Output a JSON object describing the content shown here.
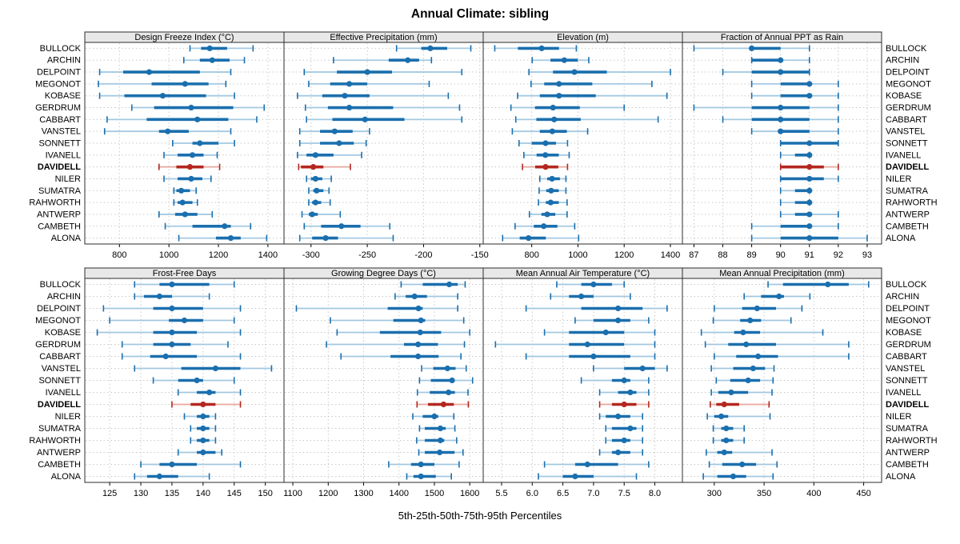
{
  "title": "Annual Climate: sibling",
  "caption": "5th-25th-50th-75th-95th Percentiles",
  "highlight_site": "DAVIDELL",
  "colors": {
    "blue": "#1a6fae",
    "blue_light": "#a3c9e2",
    "red": "#b4271f",
    "red_light": "#e7a69d",
    "strip_bg": "#e8e8e8",
    "panel_border": "#2b2b2b",
    "grid": "#c9c9c9",
    "text": "#000000"
  },
  "chart_data": {
    "type": "dotplot-intervals",
    "percentiles": [
      5,
      25,
      50,
      75,
      95
    ],
    "sites": [
      "BULLOCK",
      "ARCHIN",
      "DELPOINT",
      "MEGONOT",
      "KOBASE",
      "GERDRUM",
      "CABBART",
      "VANSTEL",
      "SONNETT",
      "IVANELL",
      "DAVIDELL",
      "NILER",
      "SUMATRA",
      "RAHWORTH",
      "ANTWERP",
      "CAMBETH",
      "ALONA"
    ],
    "legend": "none",
    "grid": "dotted",
    "panels": [
      {
        "title": "Design Freeze Index (°C)",
        "xlim": [
          660,
          1465
        ],
        "ticks": [
          800,
          1000,
          1200,
          1400
        ],
        "tick_labels": [
          "800",
          "1000",
          "1200",
          "1400"
        ],
        "values": [
          [
            1085,
            1130,
            1165,
            1235,
            1340
          ],
          [
            1060,
            1125,
            1175,
            1245,
            1305
          ],
          [
            720,
            815,
            920,
            1125,
            1250
          ],
          [
            715,
            930,
            1065,
            1160,
            1230
          ],
          [
            720,
            820,
            975,
            1150,
            1265
          ],
          [
            850,
            940,
            1090,
            1260,
            1385
          ],
          [
            750,
            910,
            1115,
            1240,
            1355
          ],
          [
            740,
            960,
            995,
            1080,
            1250
          ],
          [
            1015,
            1095,
            1125,
            1200,
            1265
          ],
          [
            980,
            1035,
            1095,
            1140,
            1195
          ],
          [
            960,
            1030,
            1085,
            1140,
            1205
          ],
          [
            980,
            1035,
            1090,
            1135,
            1170
          ],
          [
            1020,
            1030,
            1050,
            1085,
            1110
          ],
          [
            1020,
            1035,
            1055,
            1095,
            1115
          ],
          [
            960,
            1025,
            1065,
            1115,
            1175
          ],
          [
            985,
            1095,
            1225,
            1250,
            1330
          ],
          [
            1040,
            1190,
            1250,
            1290,
            1395
          ]
        ]
      },
      {
        "title": "Effective Precipitation (mm)",
        "xlim": [
          -324,
          -147
        ],
        "ticks": [
          -300,
          -250,
          -200,
          -150
        ],
        "tick_labels": [
          "-300",
          "-250",
          "-200",
          "-150"
        ],
        "values": [
          [
            -224,
            -202,
            -194,
            -179,
            -158
          ],
          [
            -280,
            -231,
            -214,
            -204,
            -193
          ],
          [
            -306,
            -277,
            -250,
            -228,
            -166
          ],
          [
            -302,
            -283,
            -266,
            -250,
            -195
          ],
          [
            -312,
            -290,
            -270,
            -248,
            -178
          ],
          [
            -305,
            -285,
            -266,
            -227,
            -168
          ],
          [
            -304,
            -281,
            -252,
            -217,
            -166
          ],
          [
            -310,
            -292,
            -279,
            -263,
            -248
          ],
          [
            -310,
            -292,
            -275,
            -262,
            -251
          ],
          [
            -312,
            -304,
            -296,
            -280,
            -255
          ],
          [
            -311,
            -309,
            -298,
            -289,
            -265
          ],
          [
            -304,
            -300,
            -296,
            -290,
            -282
          ],
          [
            -302,
            -298,
            -295,
            -289,
            -284
          ],
          [
            -302,
            -299,
            -296,
            -291,
            -283
          ],
          [
            -308,
            -302,
            -299,
            -294,
            -274
          ],
          [
            -306,
            -291,
            -273,
            -256,
            -230
          ],
          [
            -310,
            -299,
            -287,
            -276,
            -227
          ]
        ]
      },
      {
        "title": "Elevation (m)",
        "xlim": [
          590,
          1452
        ],
        "ticks": [
          800,
          1000,
          1200,
          1400
        ],
        "tick_labels": [
          "800",
          "1000",
          "1200",
          "1400"
        ],
        "values": [
          [
            640,
            740,
            843,
            918,
            993
          ],
          [
            802,
            881,
            941,
            999,
            1047
          ],
          [
            788,
            892,
            985,
            1125,
            1400
          ],
          [
            797,
            854,
            918,
            1062,
            1320
          ],
          [
            739,
            835,
            918,
            1077,
            1385
          ],
          [
            710,
            814,
            892,
            1008,
            1200
          ],
          [
            731,
            820,
            897,
            1012,
            1347
          ],
          [
            716,
            835,
            889,
            952,
            1042
          ],
          [
            745,
            800,
            860,
            905,
            955
          ],
          [
            766,
            821,
            859,
            917,
            962
          ],
          [
            760,
            815,
            860,
            915,
            955
          ],
          [
            835,
            867,
            888,
            922,
            948
          ],
          [
            832,
            863,
            884,
            917,
            948
          ],
          [
            829,
            861,
            882,
            917,
            953
          ],
          [
            790,
            842,
            867,
            902,
            953
          ],
          [
            728,
            809,
            852,
            911,
            986
          ],
          [
            674,
            748,
            786,
            861,
            1003
          ]
        ]
      },
      {
        "title": "Fraction of Annual PPT as Rain",
        "xlim": [
          86.6,
          93.5
        ],
        "ticks": [
          87,
          88,
          89,
          90,
          91,
          92,
          93
        ],
        "tick_labels": [
          "87",
          "88",
          "89",
          "90",
          "91",
          "92",
          "93"
        ],
        "values": [
          [
            87,
            89,
            89,
            90,
            91
          ],
          [
            89,
            89,
            90,
            90,
            91
          ],
          [
            88,
            89,
            90,
            91,
            91
          ],
          [
            89,
            90,
            91,
            91,
            92
          ],
          [
            89,
            90,
            91,
            91,
            92
          ],
          [
            87,
            89,
            90,
            91,
            92
          ],
          [
            88,
            89,
            90,
            91,
            92
          ],
          [
            89,
            90,
            90,
            91,
            92
          ],
          [
            90,
            90,
            91,
            92,
            92
          ],
          [
            90,
            90.5,
            91,
            91,
            91
          ],
          [
            90,
            90,
            91,
            91.5,
            92
          ],
          [
            90,
            90,
            91,
            91.5,
            92
          ],
          [
            90,
            90.5,
            91,
            91,
            91
          ],
          [
            90,
            90.5,
            91,
            91,
            91
          ],
          [
            90,
            90.5,
            91,
            91,
            92
          ],
          [
            89,
            90,
            91,
            91,
            92
          ],
          [
            89,
            90,
            91,
            92,
            93
          ]
        ]
      },
      {
        "title": "Frost-Free Days",
        "xlim": [
          121,
          153
        ],
        "ticks": [
          125,
          130,
          135,
          140,
          145,
          150
        ],
        "tick_labels": [
          "125",
          "130",
          "135",
          "140",
          "145",
          "150"
        ],
        "values": [
          [
            129,
            133,
            135,
            141,
            145
          ],
          [
            129,
            130.5,
            133,
            135,
            141
          ],
          [
            124,
            132,
            135,
            140,
            146
          ],
          [
            125,
            134.5,
            137,
            140,
            145
          ],
          [
            123,
            132,
            135,
            139,
            146
          ],
          [
            127,
            132,
            135,
            138,
            144
          ],
          [
            127,
            131.5,
            134,
            139,
            146
          ],
          [
            129,
            136.5,
            142,
            146,
            151
          ],
          [
            132,
            136,
            139,
            140,
            145
          ],
          [
            136,
            139,
            141,
            142,
            146
          ],
          [
            135,
            138,
            140,
            142,
            146
          ],
          [
            137,
            139,
            140,
            141,
            142
          ],
          [
            138,
            139,
            140,
            141,
            142
          ],
          [
            138,
            139,
            140,
            141,
            142
          ],
          [
            136,
            139,
            140,
            142,
            143
          ],
          [
            130,
            133,
            135,
            139,
            146
          ],
          [
            129,
            131,
            133,
            136,
            141
          ]
        ]
      },
      {
        "title": "Growing Degree Days (°C)",
        "xlim": [
          1075,
          1638
        ],
        "ticks": [
          1100,
          1200,
          1300,
          1400,
          1500,
          1600
        ],
        "tick_labels": [
          "1100",
          "1200",
          "1300",
          "1400",
          "1500",
          "1600"
        ],
        "values": [
          [
            1406,
            1467,
            1542,
            1566,
            1587
          ],
          [
            1389,
            1419,
            1444,
            1479,
            1566
          ],
          [
            1110,
            1368,
            1455,
            1467,
            1566
          ],
          [
            1206,
            1384,
            1462,
            1474,
            1583
          ],
          [
            1225,
            1346,
            1460,
            1519,
            1600
          ],
          [
            1195,
            1414,
            1454,
            1510,
            1585
          ],
          [
            1236,
            1376,
            1454,
            1512,
            1575
          ],
          [
            1464,
            1497,
            1537,
            1560,
            1590
          ],
          [
            1458,
            1490,
            1550,
            1556,
            1608
          ],
          [
            1452,
            1487,
            1540,
            1558,
            1595
          ],
          [
            1451,
            1482,
            1526,
            1555,
            1596
          ],
          [
            1439,
            1467,
            1500,
            1511,
            1555
          ],
          [
            1458,
            1473,
            1517,
            1532,
            1558
          ],
          [
            1450,
            1473,
            1517,
            1528,
            1563
          ],
          [
            1456,
            1473,
            1515,
            1557,
            1581
          ],
          [
            1371,
            1434,
            1462,
            1500,
            1570
          ],
          [
            1422,
            1441,
            1462,
            1504,
            1548
          ]
        ]
      },
      {
        "title": "Mean Annual Air Temperature (°C)",
        "xlim": [
          5.2,
          8.45
        ],
        "ticks": [
          5.5,
          6.0,
          6.5,
          7.0,
          7.5,
          8.0
        ],
        "tick_labels": [
          "5.5",
          "6.0",
          "6.5",
          "7.0",
          "7.5",
          "8.0"
        ],
        "values": [
          [
            6.4,
            6.8,
            7.0,
            7.3,
            7.5
          ],
          [
            6.3,
            6.6,
            6.8,
            7.0,
            7.6
          ],
          [
            5.9,
            6.8,
            7.4,
            7.8,
            8.2
          ],
          [
            6.7,
            7.0,
            7.4,
            7.6,
            7.9
          ],
          [
            6.2,
            6.6,
            7.2,
            7.5,
            8.0
          ],
          [
            5.4,
            6.6,
            6.9,
            7.5,
            8.0
          ],
          [
            5.9,
            6.6,
            7.0,
            7.6,
            8.0
          ],
          [
            7.0,
            7.5,
            7.8,
            8.0,
            8.2
          ],
          [
            6.8,
            7.3,
            7.5,
            7.6,
            7.9
          ],
          [
            7.1,
            7.4,
            7.6,
            7.7,
            7.9
          ],
          [
            7.1,
            7.3,
            7.5,
            7.7,
            7.9
          ],
          [
            7.1,
            7.2,
            7.4,
            7.6,
            7.8
          ],
          [
            7.2,
            7.3,
            7.6,
            7.7,
            7.8
          ],
          [
            7.2,
            7.3,
            7.5,
            7.6,
            7.8
          ],
          [
            7.1,
            7.3,
            7.4,
            7.6,
            7.8
          ],
          [
            6.2,
            6.7,
            6.9,
            7.4,
            7.9
          ],
          [
            6.1,
            6.5,
            6.7,
            7.0,
            7.7
          ]
        ]
      },
      {
        "title": "Mean Annual Precipitation (mm)",
        "xlim": [
          268,
          468
        ],
        "ticks": [
          300,
          350,
          400,
          450
        ],
        "tick_labels": [
          "300",
          "350",
          "400",
          "450"
        ],
        "values": [
          [
            354,
            369,
            414,
            435,
            455
          ],
          [
            330,
            347,
            365,
            370,
            396
          ],
          [
            300,
            328,
            343,
            362,
            388
          ],
          [
            299,
            326,
            336,
            347,
            377
          ],
          [
            287,
            320,
            329,
            346,
            409
          ],
          [
            291,
            314,
            332,
            362,
            435
          ],
          [
            300,
            322,
            344,
            364,
            435
          ],
          [
            297,
            319,
            339,
            351,
            360
          ],
          [
            302,
            316,
            334,
            346,
            359
          ],
          [
            297,
            304,
            317,
            334,
            358
          ],
          [
            296,
            302,
            310,
            325,
            355
          ],
          [
            293,
            300,
            307,
            314,
            356
          ],
          [
            299,
            307,
            312,
            319,
            330
          ],
          [
            299,
            307,
            312,
            319,
            330
          ],
          [
            292,
            303,
            310,
            318,
            358
          ],
          [
            295,
            308,
            328,
            342,
            363
          ],
          [
            289,
            303,
            319,
            332,
            359
          ]
        ]
      }
    ]
  }
}
